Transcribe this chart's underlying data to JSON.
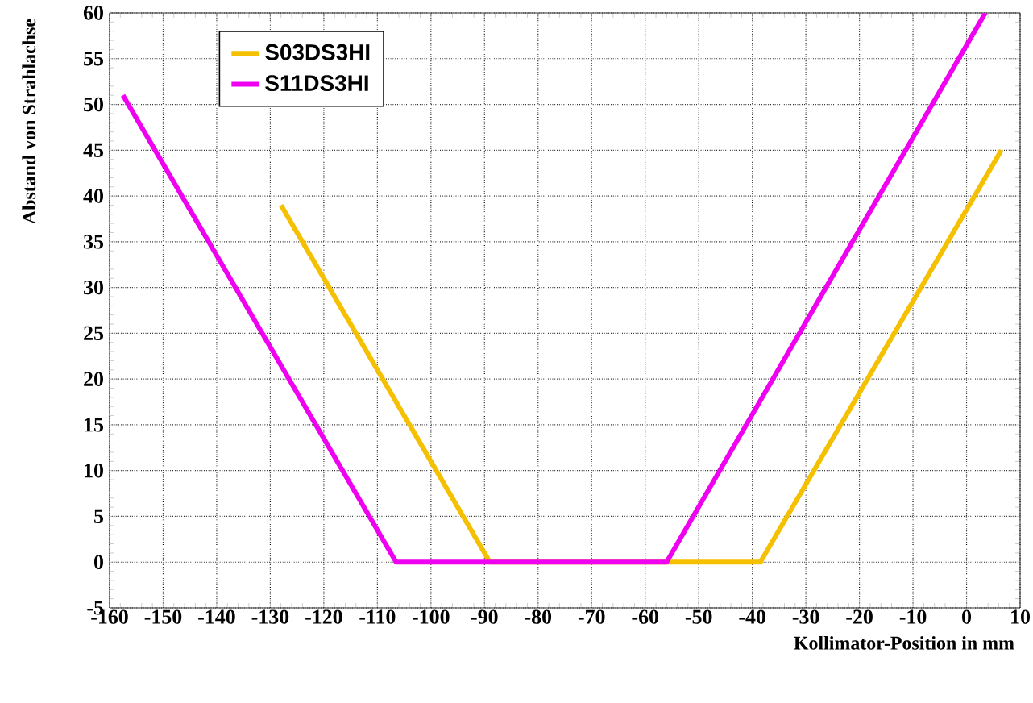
{
  "chart_data": {
    "type": "line",
    "xlabel": "Kollimator-Position in mm",
    "ylabel": "Abstand von Strahlachse",
    "xlim": [
      -160,
      10
    ],
    "ylim": [
      -5,
      60
    ],
    "xticks": [
      -160,
      -150,
      -140,
      -130,
      -120,
      -110,
      -100,
      -90,
      -80,
      -70,
      -60,
      -50,
      -40,
      -30,
      -20,
      -10,
      0,
      10
    ],
    "yticks": [
      -5,
      0,
      5,
      10,
      15,
      20,
      25,
      30,
      35,
      40,
      45,
      50,
      55,
      60
    ],
    "grid": true,
    "legend": "top left",
    "line_style": "solid",
    "marker": "none",
    "series": [
      {
        "name": "S03DS3HI",
        "color": "#f5c000",
        "x": [
          -128,
          -89,
          -38.5,
          6.5
        ],
        "values": [
          39,
          0,
          0,
          45
        ]
      },
      {
        "name": "S11DS3HI",
        "color": "#f000f0",
        "x": [
          -157.5,
          -106.5,
          -56,
          3.5
        ],
        "values": [
          51,
          0,
          0,
          60
        ]
      }
    ]
  }
}
